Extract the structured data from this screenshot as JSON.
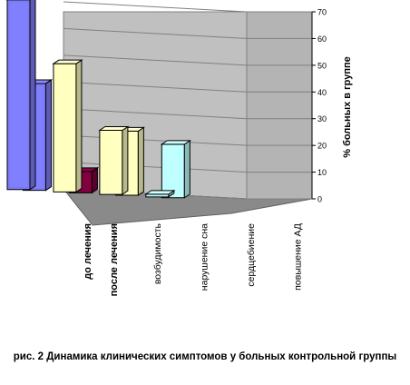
{
  "caption": "рис. 2 Динамика клинических симптомов у больных контрольной группы",
  "chart_data": {
    "type": "bar",
    "title": "",
    "xlabel": "",
    "ylabel": "% больных в группе",
    "ylim": [
      0,
      70
    ],
    "yticks": [
      0,
      10,
      20,
      30,
      40,
      50,
      60,
      70
    ],
    "grid": true,
    "legend": "",
    "categories": [
      "возбудимость",
      "нарушение сна",
      "сердцебиение",
      "повышение АД"
    ],
    "series": [
      {
        "name": "до лечения",
        "values": [
          71,
          48,
          24,
          1
        ],
        "colors": [
          "#8080ff",
          "#ffffc0",
          "#ffffc0",
          "#c0ffff"
        ]
      },
      {
        "name": "после лечения",
        "values": [
          40,
          8,
          24,
          20
        ],
        "colors": [
          "#8080ff",
          "#800040",
          "#ffffc0",
          "#c0ffff"
        ]
      }
    ]
  }
}
